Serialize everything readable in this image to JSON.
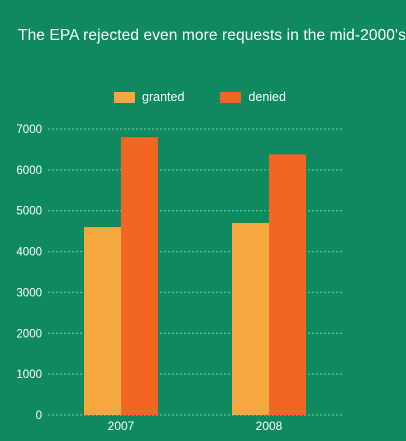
{
  "chart_data": {
    "type": "bar",
    "title": "The EPA rejected even more requests in the mid-2000's",
    "categories": [
      "2007",
      "2008"
    ],
    "series": [
      {
        "name": "granted",
        "values": [
          4600,
          4700
        ],
        "color": "#f5a83e"
      },
      {
        "name": "denied",
        "values": [
          6800,
          6380
        ],
        "color": "#f26522"
      }
    ],
    "ylim": [
      0,
      7000
    ],
    "yticks": [
      0,
      1000,
      2000,
      3000,
      4000,
      5000,
      6000,
      7000
    ],
    "grid": true,
    "legend": "top-center",
    "background": "#0e8a5e"
  }
}
